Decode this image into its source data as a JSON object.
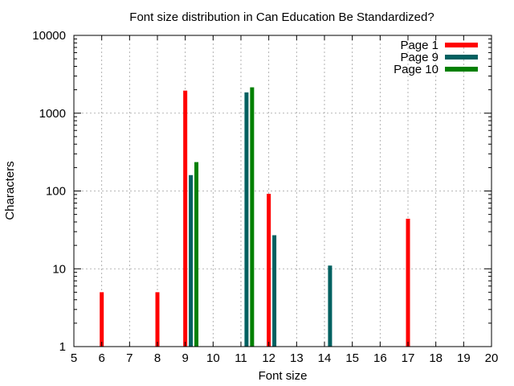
{
  "chart_data": {
    "type": "bar",
    "title": "Font size distribution in Can Education Be Standardized?",
    "xlabel": "Font size",
    "ylabel": "Characters",
    "xlim": [
      5,
      20
    ],
    "x_ticks": [
      "5",
      "6",
      "7",
      "8",
      "9",
      "10",
      "11",
      "12",
      "13",
      "14",
      "15",
      "16",
      "17",
      "18",
      "19",
      "20"
    ],
    "yscale": "log",
    "ylim": [
      1,
      10000
    ],
    "y_ticks": [
      "1",
      "10",
      "100",
      "1000",
      "10000"
    ],
    "grid": true,
    "legend_position": "top-right",
    "series": [
      {
        "name": "Page 1",
        "color": "#ff0000",
        "points": [
          {
            "x": 6,
            "y": 5
          },
          {
            "x": 8,
            "y": 5
          },
          {
            "x": 9,
            "y": 1950
          },
          {
            "x": 12,
            "y": 92
          },
          {
            "x": 17,
            "y": 44
          }
        ]
      },
      {
        "name": "Page 9",
        "color": "#006060",
        "points": [
          {
            "x": 9.2,
            "y": 160
          },
          {
            "x": 11.2,
            "y": 1850
          },
          {
            "x": 12.2,
            "y": 27
          },
          {
            "x": 14.2,
            "y": 11
          }
        ]
      },
      {
        "name": "Page 10",
        "color": "#008000",
        "points": [
          {
            "x": 9.4,
            "y": 235
          },
          {
            "x": 11.4,
            "y": 2150
          }
        ]
      }
    ]
  }
}
